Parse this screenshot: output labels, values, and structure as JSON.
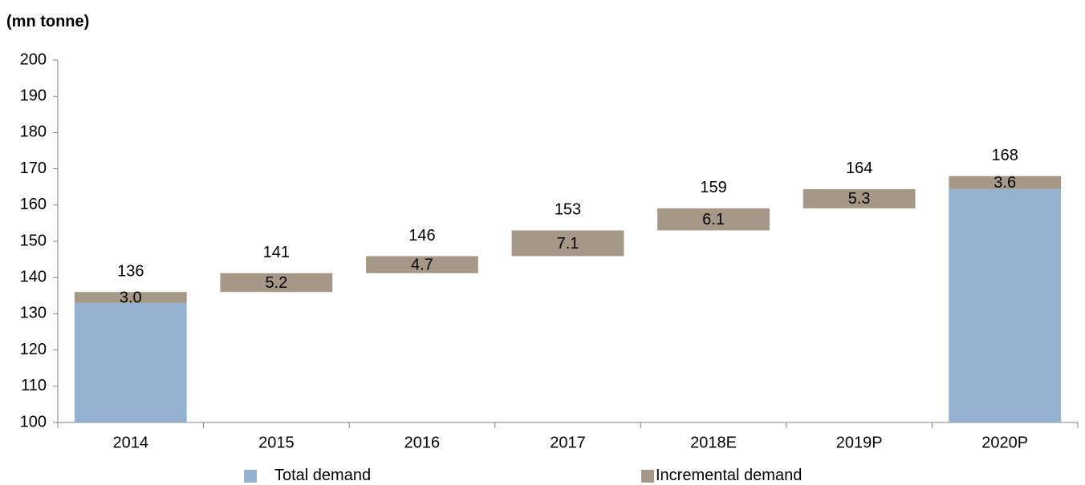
{
  "chart_data": {
    "type": "bar",
    "subtype": "waterfall",
    "ylabel": "(mn tonne)",
    "ylim": [
      100,
      200
    ],
    "yticks": [
      "100",
      "110",
      "120",
      "130",
      "140",
      "150",
      "160",
      "170",
      "180",
      "190",
      "200"
    ],
    "categories": [
      "2014",
      "2015",
      "2016",
      "2017",
      "2018E",
      "2019P",
      "2020P"
    ],
    "series": [
      {
        "name": "Total demand",
        "color": "#95b3d0",
        "values": [
          133,
          null,
          null,
          null,
          null,
          null,
          164.4
        ]
      },
      {
        "name": "Incremental demand",
        "color": "#a69886",
        "base": [
          133,
          136,
          141.2,
          145.9,
          153,
          159.1,
          164.4
        ],
        "values": [
          3.0,
          5.2,
          4.7,
          7.1,
          6.1,
          5.3,
          3.6
        ]
      }
    ],
    "increment_labels": [
      "3.0",
      "5.2",
      "4.7",
      "7.1",
      "6.1",
      "5.3",
      "3.6"
    ],
    "total_labels": [
      "136",
      "141",
      "146",
      "153",
      "159",
      "164",
      "168"
    ],
    "legend_position": "bottom",
    "grid": false
  }
}
